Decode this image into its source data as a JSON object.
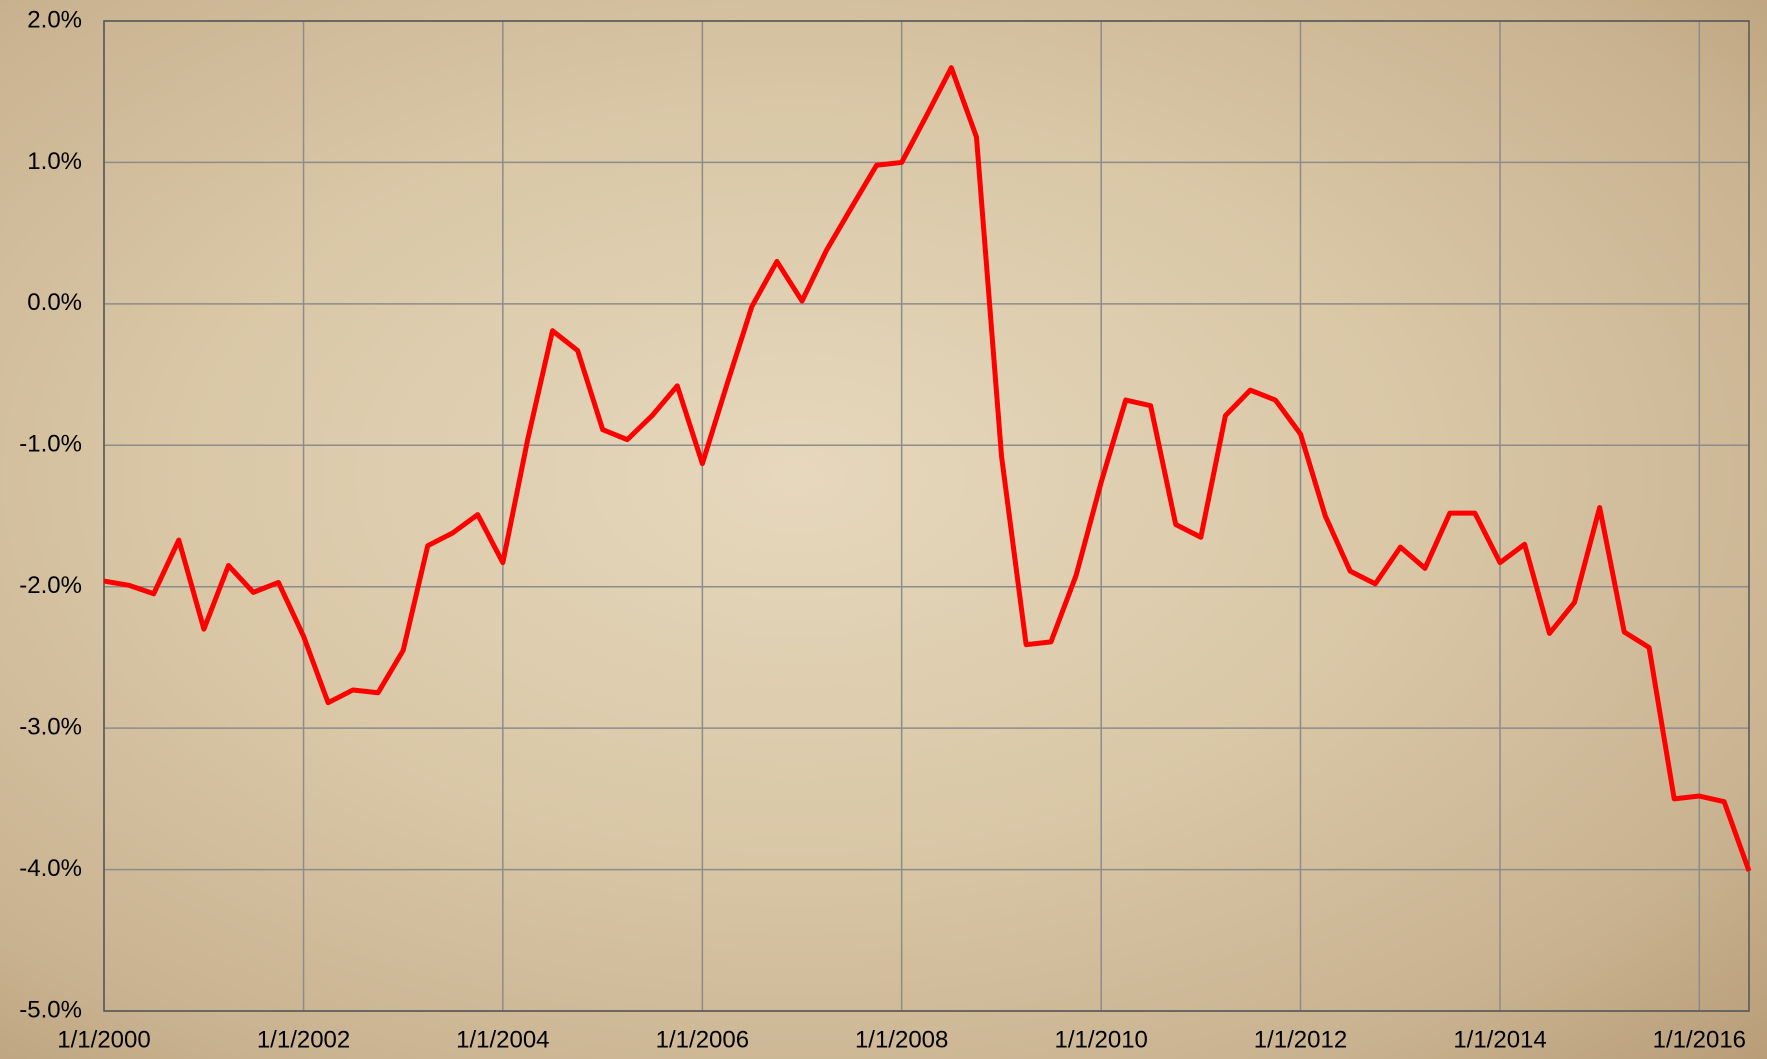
{
  "chart_data": {
    "type": "line",
    "x": [
      "1/1/2000",
      "4/1/2000",
      "7/1/2000",
      "10/1/2000",
      "1/1/2001",
      "4/1/2001",
      "7/1/2001",
      "10/1/2001",
      "1/1/2002",
      "4/1/2002",
      "7/1/2002",
      "10/1/2002",
      "1/1/2003",
      "4/1/2003",
      "7/1/2003",
      "10/1/2003",
      "1/1/2004",
      "4/1/2004",
      "7/1/2004",
      "10/1/2004",
      "1/1/2005",
      "4/1/2005",
      "7/1/2005",
      "10/1/2005",
      "1/1/2006",
      "4/1/2006",
      "7/1/2006",
      "10/1/2006",
      "1/1/2007",
      "4/1/2007",
      "7/1/2007",
      "10/1/2007",
      "1/1/2008",
      "4/1/2008",
      "7/1/2008",
      "10/1/2008",
      "1/1/2009",
      "4/1/2009",
      "7/1/2009",
      "10/1/2009",
      "1/1/2010",
      "4/1/2010",
      "7/1/2010",
      "10/1/2010",
      "1/1/2011",
      "4/1/2011",
      "7/1/2011",
      "10/1/2011",
      "1/1/2012",
      "4/1/2012",
      "7/1/2012",
      "10/1/2012",
      "1/1/2013",
      "4/1/2013",
      "7/1/2013",
      "10/1/2013",
      "1/1/2014",
      "4/1/2014",
      "7/1/2014",
      "10/1/2014",
      "1/1/2015",
      "4/1/2015",
      "7/1/2015",
      "10/1/2015",
      "1/1/2016",
      "4/1/2016",
      "7/1/2016"
    ],
    "series": [
      {
        "color": "#ff0000",
        "values": [
          -1.96,
          -1.99,
          -2.05,
          -1.67,
          -2.3,
          -1.85,
          -2.04,
          -1.97,
          -2.35,
          -2.82,
          -2.73,
          -2.75,
          -2.45,
          -1.71,
          -1.62,
          -1.49,
          -1.83,
          -0.96,
          -0.19,
          -0.33,
          -0.89,
          -0.96,
          -0.79,
          -0.58,
          -1.13,
          -0.57,
          -0.02,
          0.3,
          0.02,
          0.38,
          0.68,
          0.98,
          1.0,
          1.33,
          1.67,
          1.18,
          -1.08,
          -2.41,
          -2.39,
          -1.92,
          -1.26,
          -0.68,
          -0.72,
          -1.56,
          -1.65,
          -0.79,
          -0.61,
          -0.68,
          -0.92,
          -1.5,
          -1.89,
          -1.98,
          -1.72,
          -1.87,
          -1.48,
          -1.48,
          -1.83,
          -1.7,
          -2.33,
          -2.11,
          -1.44,
          -2.32,
          -2.43,
          -3.5,
          -3.48,
          -3.52,
          -4.01
        ]
      }
    ],
    "xlim": [
      "1/1/2000",
      "7/1/2016"
    ],
    "xticks": [
      "1/1/2000",
      "1/1/2002",
      "1/1/2004",
      "1/1/2006",
      "1/1/2008",
      "1/1/2010",
      "1/1/2012",
      "1/1/2014",
      "1/1/2016"
    ],
    "ylim": [
      -5,
      2
    ],
    "yticks": [
      {
        "value": -5,
        "label": "-5.0%"
      },
      {
        "value": -4,
        "label": "-4.0%"
      },
      {
        "value": -3,
        "label": "-3.0%"
      },
      {
        "value": -2,
        "label": "-2.0%"
      },
      {
        "value": -1,
        "label": "-1.0%"
      },
      {
        "value": 0,
        "label": "0.0%"
      },
      {
        "value": 1,
        "label": "1.0%"
      },
      {
        "value": 2,
        "label": "2.0%"
      }
    ],
    "grid": true
  }
}
